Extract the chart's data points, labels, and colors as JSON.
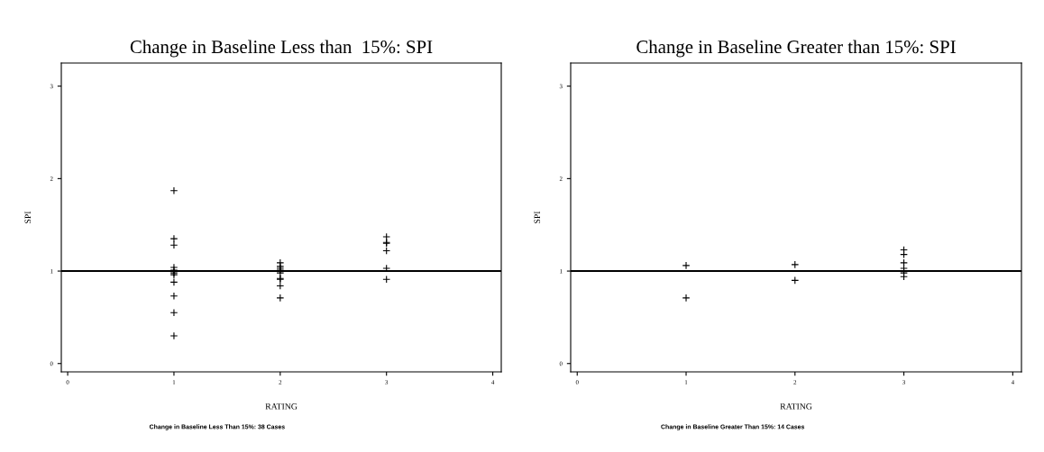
{
  "chart_data": [
    {
      "type": "scatter",
      "title": "Change in Baseline Less than  15%: SPI",
      "xlabel": "RATING",
      "ylabel": "SPI",
      "annotations": [
        "Change in Baseline Less Than 15%: 38 Cases"
      ],
      "x": [
        1,
        1,
        1,
        1,
        1,
        1,
        1,
        1,
        1,
        1,
        1,
        2,
        2,
        2,
        2,
        2,
        2,
        2,
        2,
        2,
        3,
        3,
        3,
        3,
        3,
        3
      ],
      "values": [
        1.87,
        1.35,
        1.28,
        1.04,
        1.01,
        0.98,
        0.96,
        0.88,
        0.73,
        0.55,
        0.3,
        1.09,
        1.05,
        1.03,
        1.01,
        0.98,
        0.92,
        0.91,
        0.84,
        0.71,
        1.37,
        1.31,
        1.3,
        1.22,
        1.03,
        0.91
      ],
      "color": "#000000",
      "marker": "cross",
      "xlim": [
        -0.06,
        4.08
      ],
      "ylim": [
        -0.09,
        3.25
      ],
      "xticks": [
        0,
        1,
        2,
        3,
        4
      ],
      "yticks": [
        0,
        1,
        2,
        3
      ],
      "grid": false,
      "ref_lines": [
        {
          "axis": "y",
          "value": 1,
          "color": "#000000"
        }
      ]
    },
    {
      "type": "scatter",
      "title": "Change in Baseline Greater than 15%: SPI",
      "xlabel": "RATING",
      "ylabel": "SPI",
      "annotations": [
        "Change in Baseline Greater Than 15%: 14 Cases"
      ],
      "x": [
        1,
        1,
        2,
        2,
        3,
        3,
        3,
        3,
        3,
        3
      ],
      "values": [
        1.06,
        0.71,
        1.07,
        0.9,
        1.23,
        1.18,
        1.09,
        1.03,
        0.98,
        0.94
      ],
      "color": "#000000",
      "marker": "cross",
      "xlim": [
        -0.06,
        4.08
      ],
      "ylim": [
        -0.09,
        3.25
      ],
      "xticks": [
        0,
        1,
        2,
        3,
        4
      ],
      "yticks": [
        0,
        1,
        2,
        3
      ],
      "grid": false,
      "ref_lines": [
        {
          "axis": "y",
          "value": 1,
          "color": "#000000"
        }
      ]
    }
  ]
}
